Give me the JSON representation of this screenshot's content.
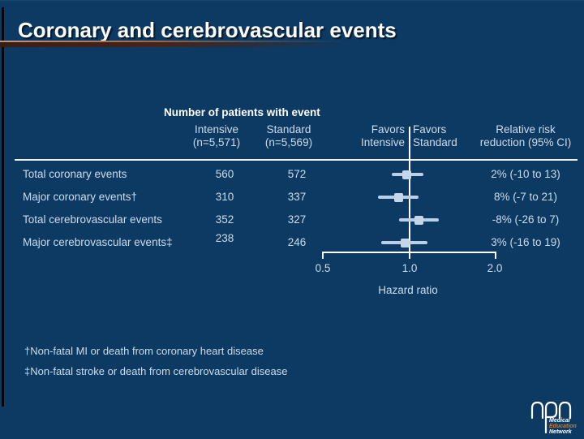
{
  "slide": {
    "title": "Coronary and cerebrovascular events",
    "footnote_dagger": "†Non-fatal MI or death from coronary heart disease",
    "footnote_double_dagger": "‡Non-fatal stroke or death from cerebrovascular disease"
  },
  "table": {
    "group_header": "Number of patients with event",
    "columns": {
      "intensive_line1": "Intensive",
      "intensive_line2": "(n=5,571)",
      "standard_line1": "Standard",
      "standard_line2": "(n=5,569)",
      "favors_intensive_line1": "Favors",
      "favors_intensive_line2": "Intensive",
      "favors_standard_line1": "Favors",
      "favors_standard_line2": "Standard",
      "rrr_line1": "Relative risk",
      "rrr_line2": "reduction (95% CI)"
    },
    "rows": [
      {
        "label": "Total coronary events",
        "intensive": "560",
        "standard": "572",
        "rrr": "2% (-10 to 13)"
      },
      {
        "label": "Major coronary events†",
        "intensive": "310",
        "standard": "337",
        "rrr": "8% (-7 to 21)"
      },
      {
        "label": "Total cerebrovascular events",
        "intensive": "352",
        "standard": "327",
        "rrr": "-8% (-26 to 7)"
      },
      {
        "label": "Major cerebrovascular events‡",
        "intensive": "238",
        "standard": "246",
        "rrr": "3% (-16 to 19)"
      }
    ]
  },
  "chart_data": {
    "type": "scatter",
    "subtype": "forest-plot",
    "scale": "log",
    "axis": {
      "label": "Hazard ratio",
      "ticks": [
        "0.5",
        "1.0",
        "2.0"
      ],
      "tick_values": [
        0.5,
        1.0,
        2.0
      ],
      "range": [
        0.5,
        2.0
      ],
      "reference_line": 1.0
    },
    "series": [
      {
        "name": "Total coronary events",
        "hr": 0.98,
        "ci": [
          0.87,
          1.12
        ],
        "rrr_text": "2% (-10 to 13)"
      },
      {
        "name": "Major coronary events",
        "hr": 0.92,
        "ci": [
          0.78,
          1.08
        ],
        "rrr_text": "8% (-7 to 21)"
      },
      {
        "name": "Total cerebrovascular events",
        "hr": 1.08,
        "ci": [
          0.92,
          1.27
        ],
        "rrr_text": "-8% (-26 to 7)"
      },
      {
        "name": "Major cerebrovascular events",
        "hr": 0.97,
        "ci": [
          0.8,
          1.16
        ],
        "rrr_text": "3% (-16 to 19)"
      }
    ]
  },
  "logo": {
    "line1": "Medical",
    "line2": "Education",
    "line3": "Network"
  },
  "colors": {
    "background": "#0d3a63",
    "title_text": "#ffffff",
    "body_text": "#ccdceb",
    "marker": "#b9cfe7",
    "reference_line": "#ffffff",
    "title_rule": "#47231a",
    "logo_education": "#e6730f"
  }
}
